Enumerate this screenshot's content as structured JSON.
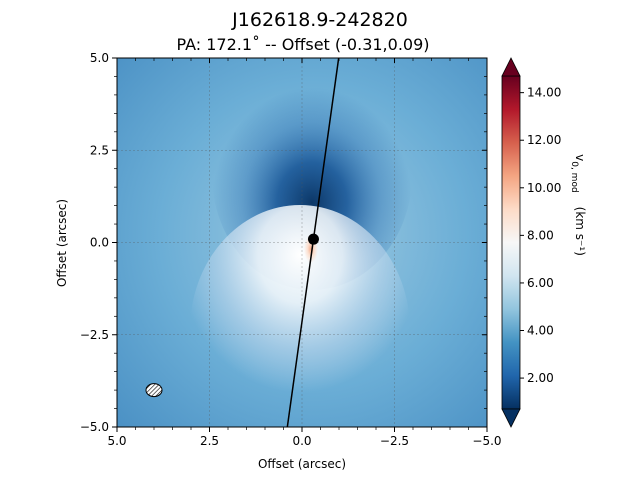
{
  "chart_data": {
    "type": "heatmap",
    "title": "J162618.9-242820",
    "subtitle": "PA: 172.1˚ -- Offset (-0.31,0.09)",
    "xlabel": "Offset (arcsec)",
    "ylabel": "Offset (arcsec)",
    "xlim": [
      5.0,
      -5.0
    ],
    "ylim": [
      -5.0,
      5.0
    ],
    "xticks": [
      5.0,
      2.5,
      0.0,
      -2.5,
      -5.0
    ],
    "xtick_labels": [
      "5.0",
      "2.5",
      "0.0",
      "−2.5",
      "−5.0"
    ],
    "yticks": [
      5.0,
      2.5,
      0.0,
      -2.5,
      -5.0
    ],
    "ytick_labels": [
      "5.0",
      "2.5",
      "0.0",
      "−2.5",
      "−5.0"
    ],
    "grid": true,
    "center": {
      "x": -0.31,
      "y": 0.09
    },
    "position_angle_deg": 172.1,
    "beam": {
      "x": 4.0,
      "y": -4.0
    },
    "colorbar": {
      "label_main": "v",
      "label_sub": "0, mod",
      "label_unit": "(km s⁻¹)",
      "range": [
        0.7,
        14.7
      ],
      "ticks": [
        2.0,
        4.0,
        6.0,
        8.0,
        10.0,
        12.0,
        14.0
      ],
      "tick_labels": [
        "2.00",
        "4.00",
        "6.00",
        "8.00",
        "10.00",
        "12.00",
        "14.00"
      ],
      "colormap": [
        "#053061",
        "#2166ac",
        "#4393c3",
        "#92c5de",
        "#d1e5f0",
        "#f7f7f7",
        "#fddbc7",
        "#f4a582",
        "#d6604d",
        "#b2182b",
        "#67001f"
      ],
      "extend": "both"
    }
  }
}
